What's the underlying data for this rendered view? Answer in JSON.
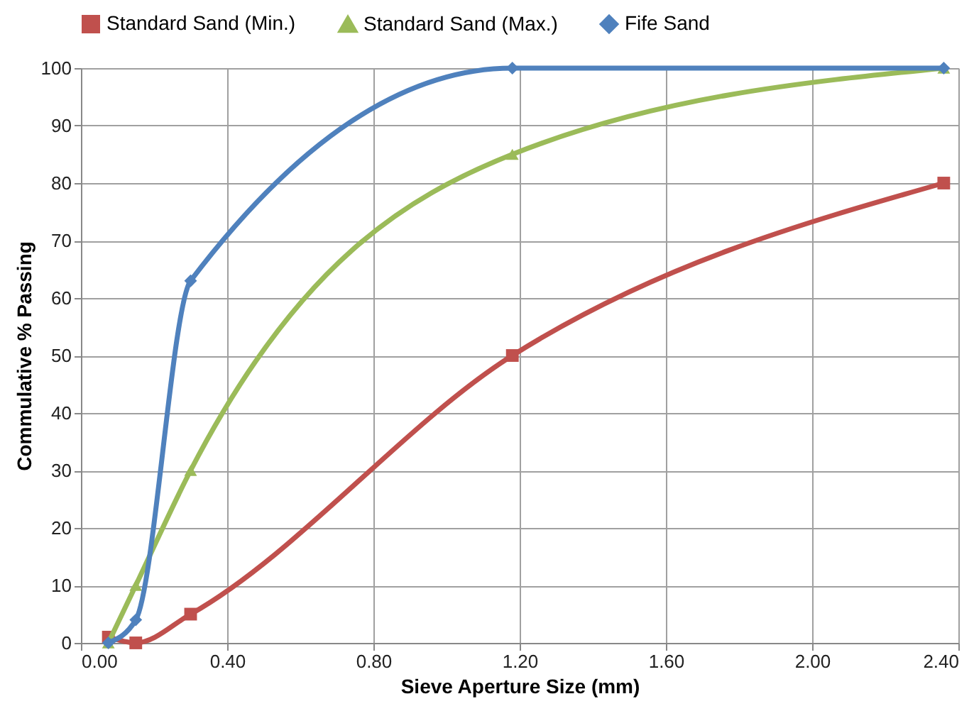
{
  "chart_data": {
    "type": "line",
    "xlabel": "Sieve Aperture Size (mm)",
    "ylabel": "Commulative % Passing",
    "x": [
      0.075,
      0.15,
      0.3,
      1.18,
      2.36
    ],
    "series": [
      {
        "name": "Standard Sand (Min.)",
        "color": "#c0504d",
        "marker": "square",
        "values": [
          1,
          0,
          5,
          50,
          80
        ]
      },
      {
        "name": "Standard Sand (Max.)",
        "color": "#9bbb59",
        "marker": "triangle",
        "values": [
          0,
          10,
          30,
          85,
          100
        ]
      },
      {
        "name": "Fife Sand",
        "color": "#4f81bd",
        "marker": "diamond",
        "values": [
          0,
          4,
          63,
          100,
          100
        ]
      }
    ],
    "xlim": [
      0,
      2.4
    ],
    "xticks": [
      {
        "value": 0,
        "label": "0.00"
      },
      {
        "value": 0.4,
        "label": "0.40"
      },
      {
        "value": 0.8,
        "label": "0.80"
      },
      {
        "value": 1.2,
        "label": "1.20"
      },
      {
        "value": 1.6,
        "label": "1.60"
      },
      {
        "value": 2.0,
        "label": "2.00"
      },
      {
        "value": 2.4,
        "label": "2.40"
      }
    ],
    "ylim": [
      0,
      100
    ],
    "yticks": [
      0,
      10,
      20,
      30,
      40,
      50,
      60,
      70,
      80,
      90,
      100
    ],
    "grid": true,
    "legend": "top",
    "line_style": "solid"
  }
}
